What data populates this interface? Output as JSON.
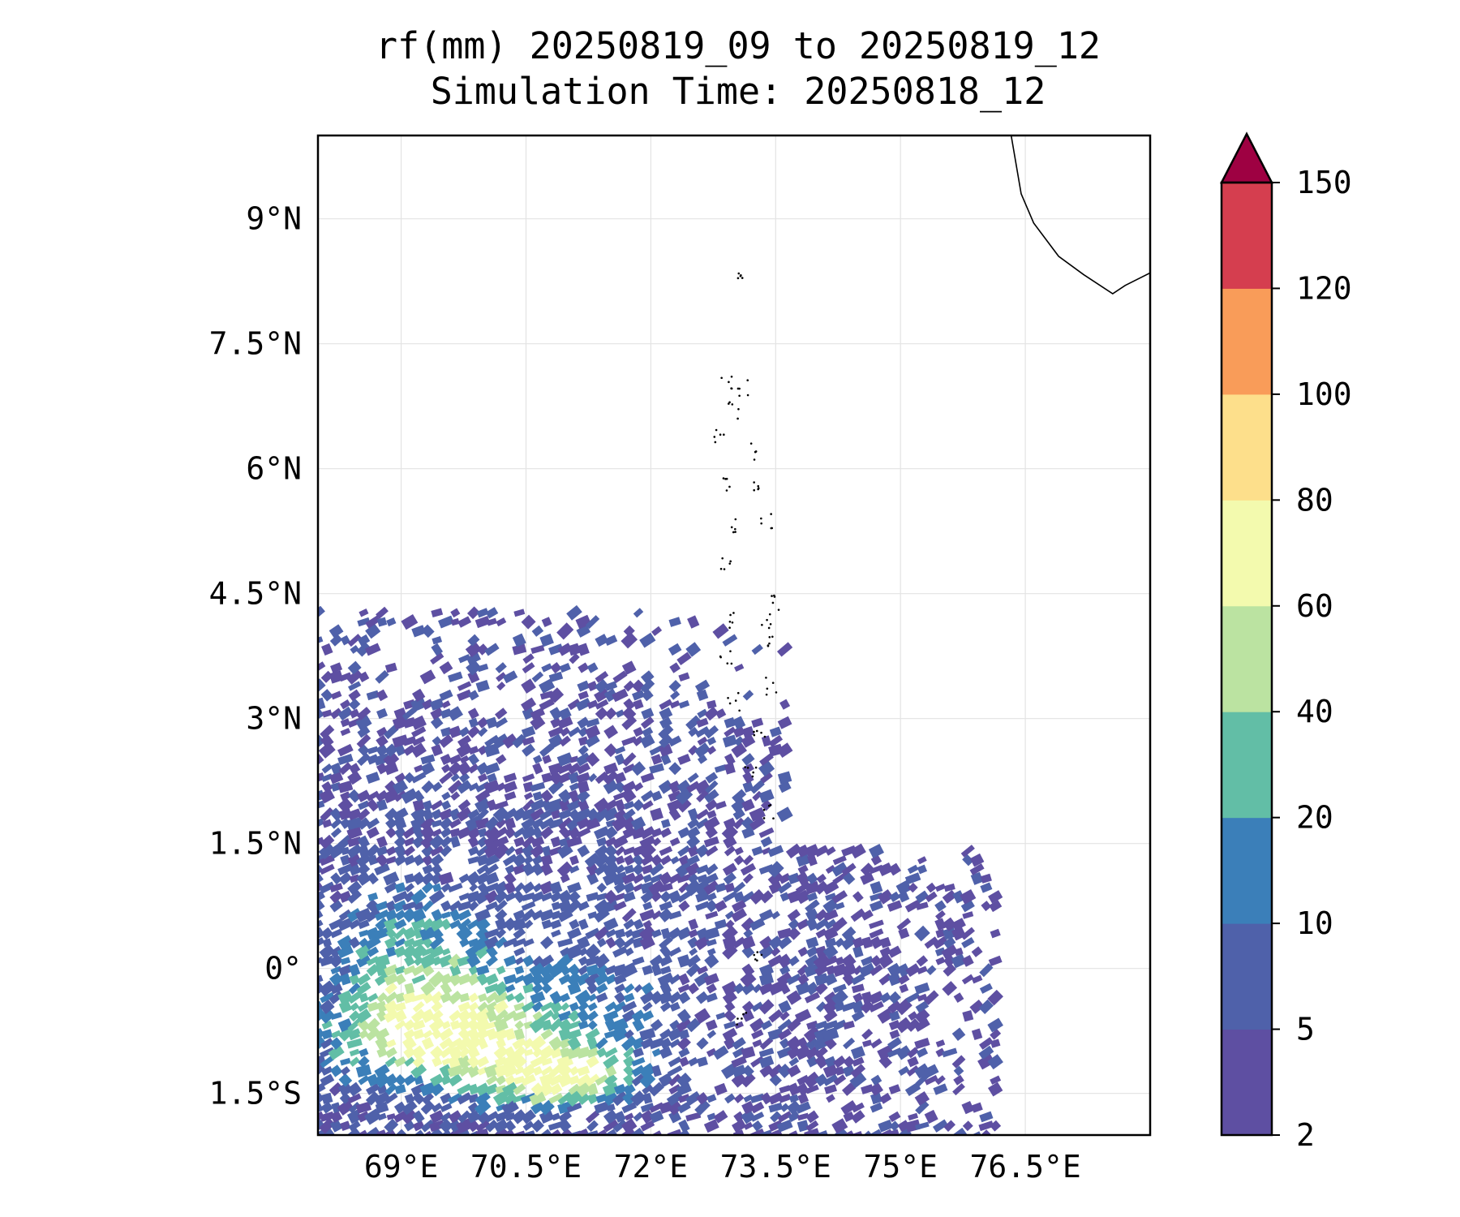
{
  "title_line1": "rf(mm) 20250819_09 to 20250819_12",
  "title_line2": "Simulation Time: 20250818_12",
  "chart_data": {
    "type": "heatmap",
    "subtype": "filled-contour precipitation map",
    "variable": "rf",
    "units": "mm",
    "xlim": [
      68.0,
      78.0
    ],
    "ylim": [
      -2.0,
      10.0
    ],
    "x_ticks": [
      69,
      70.5,
      72,
      73.5,
      75,
      76.5
    ],
    "x_tick_labels": [
      "69°E",
      "70.5°E",
      "72°E",
      "73.5°E",
      "75°E",
      "76.5°E"
    ],
    "y_ticks": [
      -1.5,
      0,
      1.5,
      3,
      4.5,
      6,
      7.5,
      9
    ],
    "y_tick_labels": [
      "1.5°S",
      "0°",
      "1.5°N",
      "3°N",
      "4.5°N",
      "6°N",
      "7.5°N",
      "9°N"
    ],
    "grid": true,
    "colorbar": {
      "levels": [
        2,
        5,
        10,
        20,
        40,
        60,
        80,
        100,
        120,
        150
      ],
      "tick_labels": [
        "2",
        "5",
        "10",
        "20",
        "40",
        "60",
        "80",
        "100",
        "120",
        "150"
      ],
      "colors": [
        "#5e4fa2",
        "#4f61aa",
        "#3b7fb9",
        "#62bea6",
        "#bbe3a1",
        "#f3faae",
        "#fddf8b",
        "#f99c59",
        "#d53e4f"
      ],
      "extend_color": "#9e0142",
      "extend": "max"
    },
    "rain_regions": [
      {
        "level": "2-5",
        "note": "broad streaky rainfall band south of ~4.5°N, west of ~76°E"
      },
      {
        "level": "5-40",
        "note": "embedded streaks, strongest 68-71.5°E, 0-1.5°S"
      },
      {
        "level": "60-80",
        "note": "isolated peaks near 69.5°E 1°S and 70.8°E 1.3°S"
      }
    ]
  }
}
